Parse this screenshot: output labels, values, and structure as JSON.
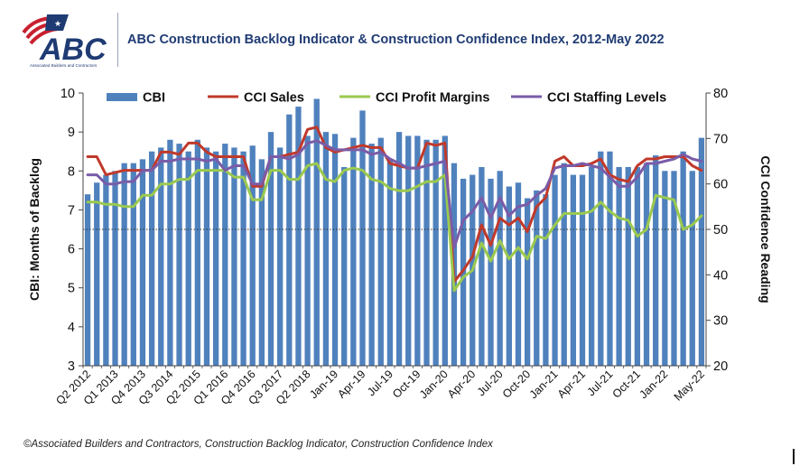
{
  "header": {
    "logo_text": "ABC",
    "logo_tagline": "Associated Builders and Contractors",
    "title": "ABC Construction Backlog Indicator & Construction Confidence Index, 2012-May 2022"
  },
  "footer": {
    "source": "©Associated Builders and Contractors, Construction Backlog Indicator, Construction Confidence Index"
  },
  "colors": {
    "cbi_bar": "#4f81bd",
    "cci_sales": "#c0392b",
    "cci_profit": "#9bc94f",
    "cci_staffing": "#7a5ca8",
    "title": "#1f3b73",
    "logo_blue": "#1f3b73",
    "logo_red": "#c8202f"
  },
  "chart_data": {
    "type": "bar",
    "title": "",
    "ylabel": "CBI: Months of Backlog",
    "y2label": "CCI Confidence Reading",
    "ylim": [
      3,
      10
    ],
    "y2lim": [
      20,
      80
    ],
    "yticks": [
      "3",
      "4",
      "5",
      "6",
      "7",
      "8",
      "9",
      "10"
    ],
    "y2ticks": [
      "20",
      "30",
      "40",
      "50",
      "60",
      "70",
      "80"
    ],
    "y2_reference_line": 50,
    "grid": false,
    "legend_position": "top",
    "x_tick_labels": [
      "Q2 2012",
      "Q1 2013",
      "Q4 2013",
      "Q3 2014",
      "Q2 2015",
      "Q1 2016",
      "Q4 2016",
      "Q3 2017",
      "Q2 2018",
      "Jan-19",
      "Apr-19",
      "Jul-19",
      "Oct-19",
      "Jan-20",
      "Apr-20",
      "Jul-20",
      "Oct-20",
      "Jan-21",
      "Apr-21",
      "Jul-21",
      "Oct-21",
      "Jan-22",
      "May-22"
    ],
    "x_tick_positions": [
      0,
      3,
      6,
      9,
      12,
      15,
      18,
      21,
      24,
      27,
      30,
      33,
      36,
      39,
      42,
      45,
      48,
      51,
      54,
      57,
      60,
      63,
      67
    ],
    "series": [
      {
        "name": "CBI",
        "type": "bar",
        "axis": "left",
        "values": [
          7.4,
          7.7,
          7.9,
          8.0,
          8.2,
          8.2,
          8.3,
          8.5,
          8.6,
          8.8,
          8.7,
          8.5,
          8.8,
          8.6,
          8.5,
          8.7,
          8.6,
          8.5,
          8.65,
          8.3,
          9.0,
          8.6,
          9.45,
          9.65,
          8.9,
          9.85,
          9.0,
          8.95,
          8.1,
          8.85,
          9.55,
          8.7,
          8.85,
          8.3,
          9.0,
          8.9,
          8.9,
          8.8,
          8.8,
          8.9,
          8.2,
          7.8,
          7.9,
          8.1,
          7.8,
          8.0,
          7.6,
          7.7,
          7.3,
          7.5,
          7.4,
          7.9,
          8.2,
          7.9,
          7.9,
          8.1,
          8.5,
          8.5,
          8.1,
          8.1,
          8.1,
          8.2,
          8.4,
          8.0,
          8.0,
          8.5,
          8.0,
          8.85
        ]
      },
      {
        "name": "CCI Sales",
        "type": "line",
        "axis": "right",
        "values": [
          66,
          66,
          62,
          62.5,
          63,
          63,
          63,
          63,
          67,
          67,
          66.5,
          69,
          69,
          67,
          66,
          66,
          66,
          66,
          59.5,
          59.5,
          66,
          66,
          66.5,
          67,
          72,
          72.5,
          68,
          67,
          67.5,
          68,
          68.5,
          68,
          68,
          64.5,
          64,
          63.5,
          63.5,
          69,
          68.5,
          69,
          38.5,
          41,
          44,
          51,
          46.5,
          52.5,
          51,
          52.5,
          49.5,
          55,
          57,
          65,
          66,
          64,
          64,
          64.5,
          65.5,
          62,
          61,
          60.5,
          64,
          65.5,
          65.5,
          66,
          66,
          66,
          64,
          63
        ]
      },
      {
        "name": "CCI Profit Margins",
        "type": "line",
        "axis": "right",
        "values": [
          56,
          56,
          55.5,
          55.5,
          55,
          55,
          57.5,
          57.5,
          60,
          60,
          61,
          61,
          63,
          63,
          63,
          63,
          61.5,
          61.5,
          56.5,
          56.5,
          63,
          63,
          61,
          61,
          64,
          64.5,
          61,
          60.5,
          63,
          63.5,
          63,
          61,
          60.5,
          59,
          58.5,
          58.5,
          59.5,
          60.5,
          60.5,
          62,
          36.5,
          39.5,
          41,
          47,
          43,
          47.5,
          43.5,
          46,
          43.5,
          48.5,
          48,
          51,
          53.5,
          53.5,
          53.5,
          54,
          56,
          54,
          52.5,
          52,
          48.5,
          50,
          57.5,
          57,
          56.5,
          50,
          51,
          53
        ]
      },
      {
        "name": "CCI Staffing Levels",
        "type": "line",
        "axis": "right",
        "values": [
          62,
          62,
          60,
          60,
          60.5,
          60.5,
          63,
          63,
          65,
          65,
          65.5,
          65.5,
          65.5,
          65,
          65.5,
          63,
          64,
          64,
          60,
          60,
          66,
          66,
          65.5,
          66.5,
          69,
          69.5,
          68.5,
          67.5,
          67.5,
          67.5,
          67.5,
          66.5,
          67,
          65.5,
          64.5,
          63.5,
          63.5,
          64,
          64.5,
          65,
          46,
          52,
          54,
          57,
          52.5,
          57,
          53,
          55,
          55.5,
          57.5,
          59,
          63.5,
          64,
          64,
          64.5,
          64,
          63.5,
          61.5,
          59.5,
          59.5,
          61.5,
          64.5,
          64.5,
          65,
          65.5,
          66.5,
          65.5,
          65
        ]
      }
    ]
  }
}
